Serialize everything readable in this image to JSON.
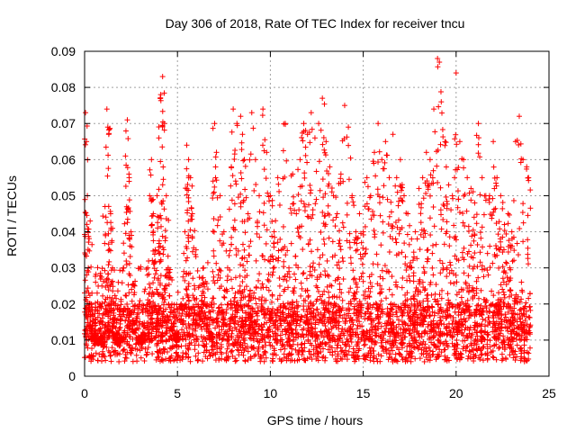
{
  "chart_data": {
    "type": "scatter",
    "title": "Day 306 of 2018, Rate Of TEC Index for receiver tncu",
    "xlabel": "GPS time / hours",
    "ylabel": "ROTI / TECUs",
    "xlim": [
      0,
      25
    ],
    "ylim": [
      0,
      0.09
    ],
    "x_ticks": [
      0,
      5,
      10,
      15,
      20,
      25
    ],
    "x_tick_labels": [
      "0",
      "5",
      "10",
      "15",
      "20",
      "25"
    ],
    "y_ticks": [
      0,
      0.01,
      0.02,
      0.03,
      0.04,
      0.05,
      0.06,
      0.07,
      0.08,
      0.09
    ],
    "y_tick_labels": [
      "0",
      "0.01",
      "0.02",
      "0.03",
      "0.04",
      "0.05",
      "0.06",
      "0.07",
      "0.08",
      "0.09"
    ],
    "grid": true,
    "marker": "+",
    "color": "#ff0000",
    "series": [
      {
        "name": "ROTI",
        "x": [
          0.05,
          0.1,
          0.15,
          0.2,
          0.3,
          0.35,
          0.45,
          0.5,
          0.6,
          0.75,
          0.9,
          1.0,
          1.1,
          1.2,
          1.25,
          1.3,
          1.4,
          1.5,
          1.6,
          1.7,
          1.8,
          1.9,
          2.0,
          2.1,
          2.2,
          2.3,
          2.4,
          2.5,
          2.7,
          2.9,
          3.0,
          3.2,
          3.4,
          3.5,
          3.6,
          3.7,
          3.8,
          3.9,
          4.0,
          4.1,
          4.2,
          4.3,
          4.4,
          4.5,
          4.7,
          4.9,
          5.0,
          5.2,
          5.4,
          5.5,
          5.6,
          5.7,
          5.8,
          6.0,
          6.2,
          6.4,
          6.6,
          6.8,
          7.0,
          7.1,
          7.3,
          7.5,
          7.7,
          7.9,
          8.0,
          8.2,
          8.4,
          8.5,
          8.6,
          8.8,
          9.0,
          9.2,
          9.4,
          9.6,
          9.8,
          10.0,
          10.2,
          10.4,
          10.6,
          10.8,
          11.0,
          11.2,
          11.4,
          11.6,
          11.8,
          12.0,
          12.2,
          12.4,
          12.6,
          12.8,
          13.0,
          13.2,
          13.4,
          13.6,
          13.8,
          14.0,
          14.2,
          14.4,
          14.6,
          14.8,
          15.0,
          15.2,
          15.4,
          15.6,
          15.8,
          16.0,
          16.2,
          16.4,
          16.6,
          16.8,
          17.0,
          17.2,
          17.4,
          17.6,
          17.8,
          18.0,
          18.2,
          18.4,
          18.6,
          18.8,
          19.0,
          19.1,
          19.2,
          19.4,
          19.6,
          19.8,
          20.0,
          20.2,
          20.4,
          20.6,
          20.8,
          21.0,
          21.2,
          21.4,
          21.6,
          21.8,
          22.0,
          22.2,
          22.4,
          22.6,
          22.8,
          23.0,
          23.2,
          23.4,
          23.6,
          23.8,
          23.9
        ],
        "y": [
          0.073,
          0.065,
          0.05,
          0.03,
          0.043,
          0.02,
          0.015,
          0.012,
          0.01,
          0.009,
          0.011,
          0.008,
          0.047,
          0.074,
          0.069,
          0.067,
          0.045,
          0.03,
          0.02,
          0.012,
          0.009,
          0.01,
          0.011,
          0.03,
          0.061,
          0.071,
          0.055,
          0.04,
          0.025,
          0.011,
          0.009,
          0.012,
          0.03,
          0.05,
          0.06,
          0.045,
          0.035,
          0.05,
          0.066,
          0.078,
          0.083,
          0.07,
          0.05,
          0.03,
          0.02,
          0.012,
          0.01,
          0.02,
          0.04,
          0.064,
          0.06,
          0.055,
          0.045,
          0.035,
          0.025,
          0.03,
          0.02,
          0.012,
          0.07,
          0.062,
          0.05,
          0.04,
          0.03,
          0.058,
          0.074,
          0.07,
          0.072,
          0.067,
          0.06,
          0.045,
          0.073,
          0.06,
          0.05,
          0.074,
          0.062,
          0.05,
          0.04,
          0.055,
          0.035,
          0.07,
          0.03,
          0.056,
          0.045,
          0.06,
          0.07,
          0.067,
          0.073,
          0.066,
          0.07,
          0.077,
          0.065,
          0.058,
          0.05,
          0.045,
          0.056,
          0.075,
          0.069,
          0.05,
          0.04,
          0.045,
          0.04,
          0.055,
          0.05,
          0.062,
          0.07,
          0.06,
          0.065,
          0.055,
          0.067,
          0.055,
          0.06,
          0.05,
          0.045,
          0.038,
          0.04,
          0.052,
          0.055,
          0.062,
          0.06,
          0.074,
          0.088,
          0.087,
          0.076,
          0.065,
          0.053,
          0.05,
          0.084,
          0.065,
          0.06,
          0.055,
          0.052,
          0.048,
          0.07,
          0.055,
          0.05,
          0.05,
          0.065,
          0.055,
          0.05,
          0.042,
          0.045,
          0.04,
          0.065,
          0.072,
          0.06,
          0.058,
          0.055
        ]
      }
    ]
  }
}
